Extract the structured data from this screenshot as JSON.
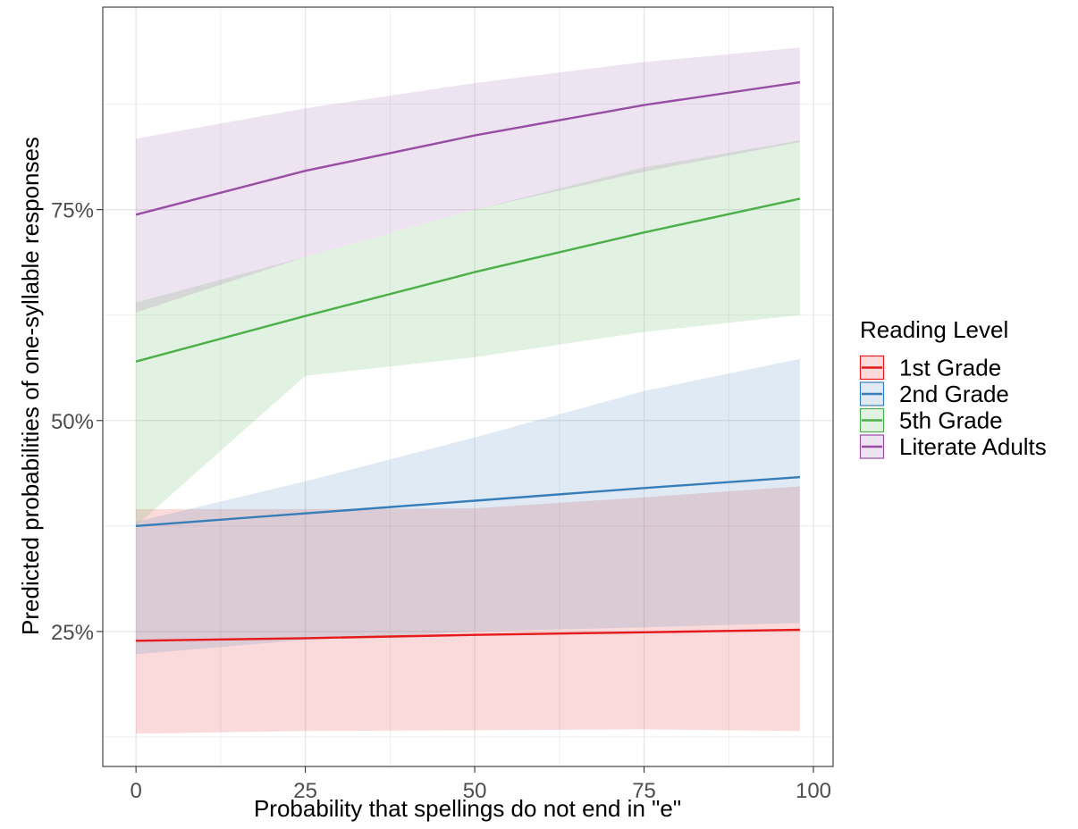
{
  "chart_data": {
    "type": "line",
    "title": "",
    "xlabel": "Probability that spellings do not end in \"e\"",
    "ylabel": "Predicted probabilities of one-syllable responses",
    "xlim": [
      -4.9,
      102.9
    ],
    "ylim": [
      9.0,
      99.0
    ],
    "x_ticks": [
      0,
      25,
      50,
      75,
      100
    ],
    "x_tick_labels": [
      "0",
      "25",
      "50",
      "75",
      "100"
    ],
    "y_ticks": [
      25,
      50,
      75
    ],
    "y_tick_labels": [
      "25%",
      "50%",
      "75%"
    ],
    "grid": true,
    "legend": {
      "title": "Reading Level",
      "position": "right"
    },
    "series": [
      {
        "name": "1st Grade",
        "color": "#E41A1C",
        "x": [
          0,
          25,
          50,
          75,
          98
        ],
        "y": [
          23.9,
          24.2,
          24.6,
          24.9,
          25.2
        ],
        "lower": [
          12.9,
          13.2,
          13.3,
          13.4,
          13.2
        ],
        "upper": [
          39.5,
          39.5,
          39.6,
          40.9,
          42.2
        ]
      },
      {
        "name": "2nd Grade",
        "color": "#377EB8",
        "x": [
          0,
          25,
          50,
          75,
          98
        ],
        "y": [
          37.5,
          39.0,
          40.5,
          42.0,
          43.3
        ],
        "lower": [
          22.3,
          24.0,
          25.0,
          25.5,
          26.0
        ],
        "upper": [
          38.0,
          42.8,
          48.0,
          53.5,
          57.3
        ]
      },
      {
        "name": "5th Grade",
        "color": "#4DAF4A",
        "x": [
          0,
          25,
          50,
          75,
          98
        ],
        "y": [
          57.0,
          62.4,
          67.6,
          72.3,
          76.3
        ],
        "lower": [
          37.5,
          55.3,
          57.5,
          60.5,
          62.5
        ],
        "upper": [
          64.0,
          69.4,
          75.0,
          80.0,
          83.2
        ]
      },
      {
        "name": "Literate Adults",
        "color": "#984EA3",
        "x": [
          0,
          25,
          50,
          75,
          98
        ],
        "y": [
          74.4,
          79.6,
          83.8,
          87.4,
          90.1
        ],
        "lower": [
          62.8,
          69.4,
          75.0,
          79.5,
          83.0
        ],
        "upper": [
          83.4,
          87.0,
          90.0,
          92.5,
          94.2
        ]
      }
    ]
  }
}
